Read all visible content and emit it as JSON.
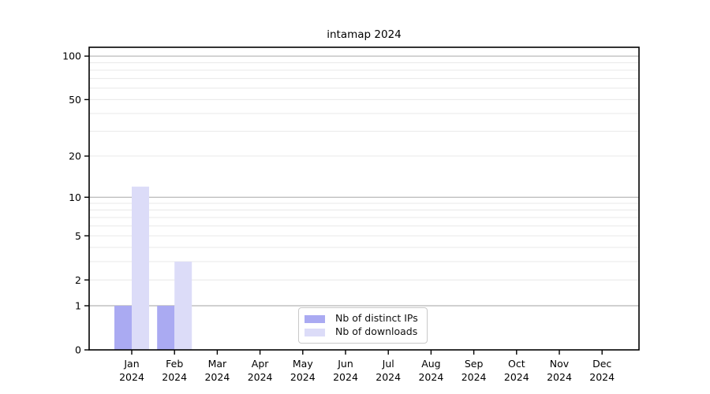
{
  "chart_data": {
    "type": "bar",
    "title": "intamap 2024",
    "categories": [
      "Jan",
      "Feb",
      "Mar",
      "Apr",
      "May",
      "Jun",
      "Jul",
      "Aug",
      "Sep",
      "Oct",
      "Nov",
      "Dec"
    ],
    "year_label": "2024",
    "series": [
      {
        "name": "Nb of distinct IPs",
        "color": "#aaaaf2",
        "values": [
          1,
          1,
          0,
          0,
          0,
          0,
          0,
          0,
          0,
          0,
          0,
          0
        ]
      },
      {
        "name": "Nb of downloads",
        "color": "#dcdcf8",
        "values": [
          12,
          3,
          0,
          0,
          0,
          0,
          0,
          0,
          0,
          0,
          0,
          0
        ]
      }
    ],
    "yscale": "log1p",
    "ylim": [
      0,
      115
    ],
    "yticks": [
      0,
      1,
      2,
      5,
      10,
      20,
      50,
      100
    ],
    "grid": {
      "major_values": [
        1,
        10,
        100
      ],
      "minor_values": [
        2,
        3,
        4,
        5,
        6,
        7,
        8,
        9,
        20,
        30,
        40,
        50,
        60,
        70,
        80,
        90
      ]
    },
    "legend": {
      "position": "bottom-center-inside",
      "entries": [
        {
          "label": "Nb of distinct IPs",
          "color": "#aaaaf2"
        },
        {
          "label": "Nb of downloads",
          "color": "#dcdcf8"
        }
      ]
    }
  },
  "colors": {
    "background": "#ffffff",
    "spine": "#000000",
    "tick": "#000000",
    "text": "#000000",
    "major_grid": "#b3b3b3",
    "minor_grid": "#e8e8e8"
  }
}
